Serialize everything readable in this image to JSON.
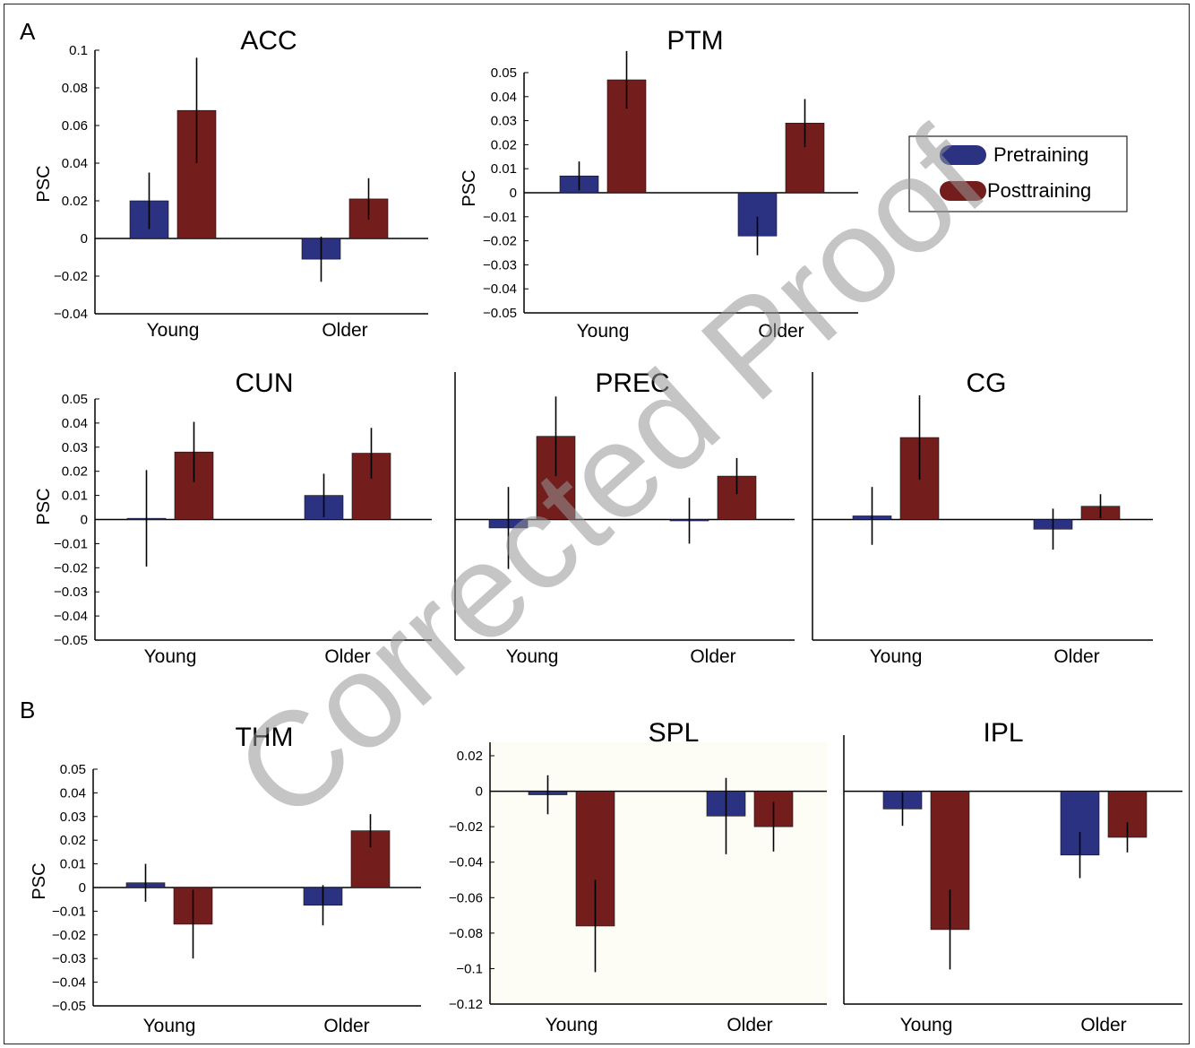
{
  "sections": [
    "A",
    "B"
  ],
  "watermark": "Corrected Proof",
  "colors": {
    "pretraining": "#2b3282",
    "posttraining": "#731d1d",
    "axis": "#000000",
    "error": "#000000",
    "shaded_panel": "#fdfdf6"
  },
  "legend": {
    "items": [
      {
        "label": "Pretraining",
        "color": "#2b3282"
      },
      {
        "label": "Posttraining",
        "color": "#731d1d"
      }
    ]
  },
  "chart_data": [
    {
      "type": "bar",
      "title": "ACC",
      "ylabel": "PSC",
      "ylim": [
        -0.04,
        0.1
      ],
      "yticks": [
        "0.1",
        "0.08",
        "0.06",
        "0.04",
        "0.02",
        "0",
        "−0.02",
        "−0.04"
      ],
      "categories": [
        "Young",
        "Older"
      ],
      "series": [
        {
          "name": "Pretraining",
          "values": [
            0.02,
            -0.011
          ],
          "errors": [
            0.015,
            0.012
          ]
        },
        {
          "name": "Posttraining",
          "values": [
            0.068,
            0.021
          ],
          "errors": [
            0.028,
            0.011
          ]
        }
      ]
    },
    {
      "type": "bar",
      "title": "PTM",
      "ylabel": "PSC",
      "ylim": [
        -0.05,
        0.05
      ],
      "yticks": [
        "0.05",
        "0.04",
        "0.03",
        "0.02",
        "0.01",
        "0",
        "−0.01",
        "−0.02",
        "−0.03",
        "−0.04",
        "−0.05"
      ],
      "categories": [
        "Young",
        "Older"
      ],
      "series": [
        {
          "name": "Pretraining",
          "values": [
            0.007,
            -0.018
          ],
          "errors": [
            0.006,
            0.008
          ]
        },
        {
          "name": "Posttraining",
          "values": [
            0.047,
            0.029
          ],
          "errors": [
            0.012,
            0.01
          ]
        }
      ]
    },
    {
      "type": "bar",
      "title": "CUN",
      "ylabel": "PSC",
      "ylim": [
        -0.05,
        0.05
      ],
      "yticks": [
        "0.05",
        "0.04",
        "0.03",
        "0.02",
        "0.01",
        "0",
        "−0.01",
        "−0.02",
        "−0.03",
        "−0.04",
        "−0.05"
      ],
      "categories": [
        "Young",
        "Older"
      ],
      "series": [
        {
          "name": "Pretraining",
          "values": [
            0.0005,
            0.01
          ],
          "errors": [
            0.02,
            0.009
          ]
        },
        {
          "name": "Posttraining",
          "values": [
            0.028,
            0.0275
          ],
          "errors": [
            0.0125,
            0.0105
          ]
        }
      ]
    },
    {
      "type": "bar",
      "title": "PREC",
      "ylabel": "",
      "ylim": [
        -0.05,
        0.05
      ],
      "yticks": [],
      "categories": [
        "Young",
        "Older"
      ],
      "series": [
        {
          "name": "Pretraining",
          "values": [
            -0.0035,
            -0.0005
          ],
          "errors": [
            0.017,
            0.0095
          ]
        },
        {
          "name": "Posttraining",
          "values": [
            0.0345,
            0.018
          ],
          "errors": [
            0.0165,
            0.0075
          ]
        }
      ]
    },
    {
      "type": "bar",
      "title": "CG",
      "ylabel": "",
      "ylim": [
        -0.05,
        0.05
      ],
      "yticks": [],
      "categories": [
        "Young",
        "Older"
      ],
      "series": [
        {
          "name": "Pretraining",
          "values": [
            0.0015,
            -0.004
          ],
          "errors": [
            0.012,
            0.0085
          ]
        },
        {
          "name": "Posttraining",
          "values": [
            0.034,
            0.0055
          ],
          "errors": [
            0.0175,
            0.005
          ]
        }
      ]
    },
    {
      "type": "bar",
      "title": "THM",
      "ylabel": "PSC",
      "ylim": [
        -0.05,
        0.05
      ],
      "yticks": [
        "0.05",
        "0.04",
        "0.03",
        "0.02",
        "0.01",
        "0",
        "−0.01",
        "−0.02",
        "−0.03",
        "−0.04",
        "−0.05"
      ],
      "categories": [
        "Young",
        "Older"
      ],
      "series": [
        {
          "name": "Pretraining",
          "values": [
            0.002,
            -0.0075
          ],
          "errors": [
            0.008,
            0.0085
          ]
        },
        {
          "name": "Posttraining",
          "values": [
            -0.0155,
            0.024
          ],
          "errors": [
            0.0145,
            0.007
          ]
        }
      ]
    },
    {
      "type": "bar",
      "title": "SPL",
      "ylabel": "",
      "ylim": [
        -0.12,
        0.02
      ],
      "yticks": [
        "0.02",
        "0",
        "−0.02",
        "−0.04",
        "−0.06",
        "−0.08",
        "−0.1",
        "−0.12"
      ],
      "categories": [
        "Young",
        "Older"
      ],
      "series": [
        {
          "name": "Pretraining",
          "values": [
            -0.002,
            -0.014
          ],
          "errors": [
            0.011,
            0.0215
          ]
        },
        {
          "name": "Posttraining",
          "values": [
            -0.076,
            -0.02
          ],
          "errors": [
            0.026,
            0.014
          ]
        }
      ]
    },
    {
      "type": "bar",
      "title": "IPL",
      "ylabel": "",
      "ylim": [
        -0.12,
        0.02
      ],
      "yticks": [],
      "categories": [
        "Young",
        "Older"
      ],
      "series": [
        {
          "name": "Pretraining",
          "values": [
            -0.01,
            -0.036
          ],
          "errors": [
            0.0095,
            0.013
          ]
        },
        {
          "name": "Posttraining",
          "values": [
            -0.078,
            -0.026
          ],
          "errors": [
            0.0225,
            0.0085
          ]
        }
      ]
    }
  ]
}
